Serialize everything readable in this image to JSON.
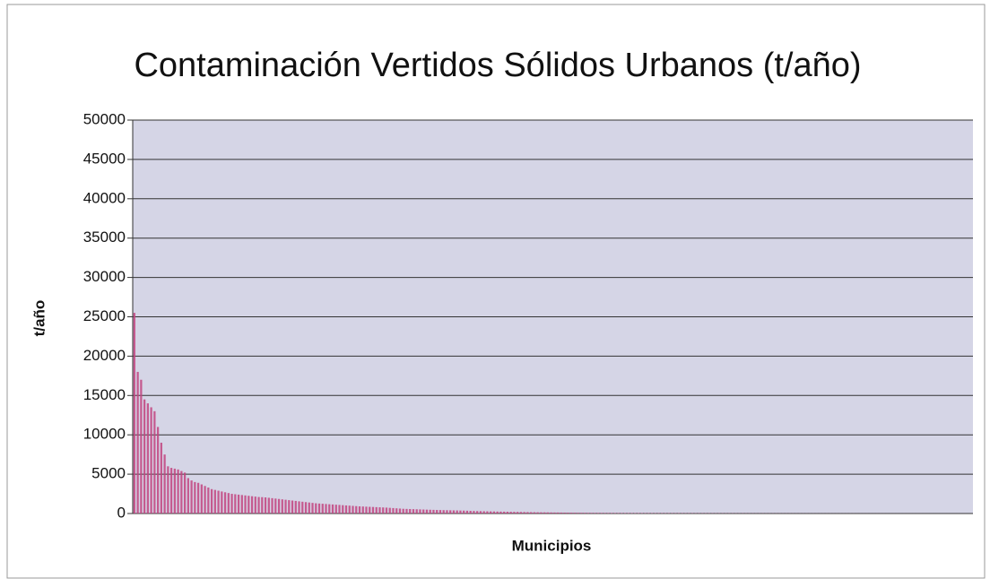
{
  "chart_data": {
    "type": "bar",
    "title": "Contaminación Vertidos Sólidos Urbanos (t/año)",
    "xlabel": "Municipios",
    "ylabel": "t/año",
    "color": "#c2447f",
    "grid": true,
    "ylim": [
      0,
      50000
    ],
    "yticks": [
      0,
      5000,
      10000,
      15000,
      20000,
      25000,
      30000,
      35000,
      40000,
      45000,
      50000
    ],
    "categories": [
      null,
      null,
      null,
      null,
      null,
      null,
      null,
      null,
      null,
      null,
      null,
      null,
      null,
      null,
      null,
      null,
      null,
      null,
      null,
      null,
      null,
      null,
      null,
      null,
      null,
      null,
      null,
      null,
      null,
      null,
      null,
      null,
      null,
      null,
      null,
      null,
      null,
      null,
      null,
      null,
      null,
      null,
      null,
      null,
      null,
      null,
      null,
      null,
      null,
      null,
      null,
      null,
      null,
      null,
      null,
      null,
      null,
      null,
      null,
      null,
      null,
      null,
      null,
      null,
      null,
      null,
      null,
      null,
      null,
      null,
      null,
      null,
      null,
      null,
      null,
      null,
      null,
      null,
      null,
      null,
      null,
      null,
      null,
      null,
      null,
      null,
      null,
      null,
      null,
      null,
      null,
      null,
      null,
      null,
      null,
      null,
      null,
      null,
      null,
      null,
      null,
      null,
      null,
      null,
      null,
      null,
      null,
      null,
      null,
      null,
      null,
      null,
      null,
      null,
      null,
      null,
      null,
      null,
      null,
      null,
      null,
      null,
      null,
      null,
      null,
      null,
      null,
      null,
      null,
      null,
      null,
      null,
      null,
      null,
      null,
      null,
      null,
      null,
      null,
      null,
      null,
      null,
      null,
      null,
      null,
      null,
      null,
      null,
      null,
      null,
      null,
      null,
      null,
      null,
      null,
      null,
      null,
      null,
      null,
      null,
      null,
      null,
      null,
      null,
      null,
      null,
      null,
      null,
      null,
      null,
      null,
      null,
      null,
      null,
      null,
      null,
      null,
      null,
      null,
      null,
      null,
      null,
      null,
      null,
      null,
      null,
      null,
      null,
      null,
      null,
      null,
      null,
      null,
      null,
      null,
      null,
      null,
      null,
      null,
      null,
      null,
      null,
      null,
      null,
      null,
      null,
      null,
      null,
      null,
      null,
      null,
      null,
      null,
      null,
      null,
      null,
      null,
      null,
      null,
      null,
      null,
      null,
      null,
      null,
      null,
      null,
      null,
      null,
      null,
      null,
      null,
      null,
      null,
      null,
      null,
      null,
      null,
      null,
      null,
      null,
      null,
      null,
      null,
      null,
      null,
      null,
      null,
      null,
      null,
      null
    ],
    "values": [
      25500,
      18000,
      17000,
      14500,
      14000,
      13500,
      13000,
      11000,
      9000,
      7500,
      6000,
      5800,
      5700,
      5600,
      5400,
      5200,
      4500,
      4200,
      4000,
      3900,
      3700,
      3500,
      3300,
      3100,
      3000,
      2900,
      2800,
      2700,
      2600,
      2500,
      2450,
      2400,
      2350,
      2300,
      2250,
      2200,
      2150,
      2100,
      2080,
      2050,
      2000,
      1950,
      1900,
      1850,
      1800,
      1750,
      1700,
      1650,
      1600,
      1550,
      1500,
      1450,
      1400,
      1350,
      1300,
      1270,
      1240,
      1210,
      1180,
      1150,
      1120,
      1090,
      1060,
      1030,
      1000,
      970,
      940,
      910,
      890,
      870,
      850,
      830,
      810,
      790,
      770,
      750,
      720,
      690,
      660,
      630,
      600,
      585,
      570,
      555,
      540,
      525,
      510,
      495,
      480,
      465,
      450,
      440,
      430,
      420,
      410,
      400,
      390,
      380,
      370,
      355,
      340,
      325,
      310,
      300,
      290,
      280,
      270,
      260,
      250,
      242,
      234,
      226,
      218,
      210,
      202,
      194,
      186,
      178,
      170,
      162,
      155,
      150,
      145,
      140,
      135,
      130,
      125,
      120,
      115,
      110,
      105,
      100,
      95,
      90,
      85,
      80,
      78,
      76,
      74,
      72,
      70,
      68,
      66,
      64,
      62,
      60,
      59,
      58,
      57,
      56,
      55,
      54,
      53,
      52,
      51,
      50,
      49,
      48,
      47,
      46,
      45,
      44,
      43,
      42,
      41,
      40,
      39,
      38,
      37,
      36,
      35,
      34,
      33,
      32,
      31,
      30,
      29,
      28,
      27,
      26,
      25,
      24,
      23,
      22,
      21,
      20,
      20,
      19,
      19,
      18,
      18,
      17,
      17,
      16,
      16,
      15,
      15,
      14,
      14,
      13,
      13,
      12,
      12,
      11,
      11,
      10,
      10,
      10,
      9,
      9,
      9,
      8,
      8,
      8,
      8,
      7,
      7,
      7,
      7,
      6,
      6,
      6,
      6,
      6,
      5,
      5,
      5,
      5,
      5,
      5,
      4,
      4,
      4,
      4,
      4,
      4,
      3,
      3,
      3,
      3,
      3,
      3,
      2,
      2,
      2,
      2,
      2,
      2,
      1,
      1
    ]
  }
}
